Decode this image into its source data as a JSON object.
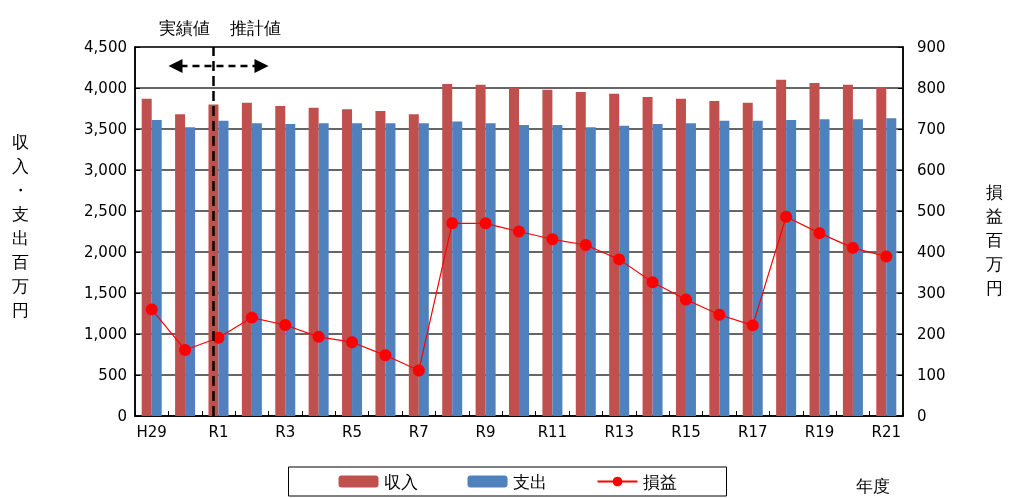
{
  "chart_data": {
    "type": "bar",
    "xlabel": "年度",
    "ylabel": "収入・支出百万円",
    "y2label": "損益百万円",
    "categories": [
      "H29",
      null,
      "R1",
      null,
      "R3",
      null,
      "R5",
      null,
      "R7",
      null,
      "R9",
      null,
      "R11",
      null,
      "R13",
      null,
      "R15",
      null,
      "R17",
      null,
      "R19",
      null,
      "R21"
    ],
    "series": [
      {
        "name": "収入",
        "color": "#c0504d",
        "values": [
          3870,
          3680,
          3800,
          3820,
          3780,
          3760,
          3740,
          3720,
          3680,
          4050,
          4040,
          4000,
          3980,
          3950,
          3930,
          3890,
          3870,
          3840,
          3820,
          4100,
          4060,
          4040,
          4010
        ]
      },
      {
        "name": "支出",
        "color": "#4f81bd",
        "values": [
          3610,
          3520,
          3600,
          3570,
          3560,
          3570,
          3570,
          3570,
          3570,
          3590,
          3570,
          3550,
          3550,
          3520,
          3540,
          3560,
          3570,
          3600,
          3600,
          3610,
          3620,
          3620,
          3630
        ]
      },
      {
        "name": "損益",
        "type": "line",
        "axis": "y2",
        "color": "#ff0000",
        "values": [
          260,
          161,
          191,
          240,
          222,
          193,
          180,
          148,
          111,
          470,
          470,
          450,
          431,
          417,
          382,
          326,
          284,
          247,
          221,
          486,
          446,
          410,
          389
        ]
      }
    ],
    "ylim": [
      0,
      4500
    ],
    "yticks": [
      0,
      500,
      {
        "value": 1000,
        "label": "1,000"
      },
      {
        "value": 1500,
        "label": "1,500"
      },
      {
        "value": 2000,
        "label": "2,000"
      },
      {
        "value": 2500,
        "label": "2,500"
      },
      {
        "value": 3000,
        "label": "3,000"
      },
      {
        "value": 3500,
        "label": "3,500"
      },
      {
        "value": 4000,
        "label": "4,000"
      },
      {
        "value": 4500,
        "label": "4,500"
      }
    ],
    "y2lim": [
      0,
      900
    ],
    "y2ticks": [
      0,
      100,
      200,
      300,
      400,
      500,
      600,
      700,
      800,
      900
    ],
    "ref_lines": [
      {
        "axis": "x",
        "value": "R1",
        "color": "#000000",
        "line_style": "dashed"
      }
    ],
    "annotations": [
      "実績値",
      "推計値"
    ],
    "grid": "y",
    "legend": "bottom",
    "marker": "circle",
    "line_style": "solid"
  }
}
